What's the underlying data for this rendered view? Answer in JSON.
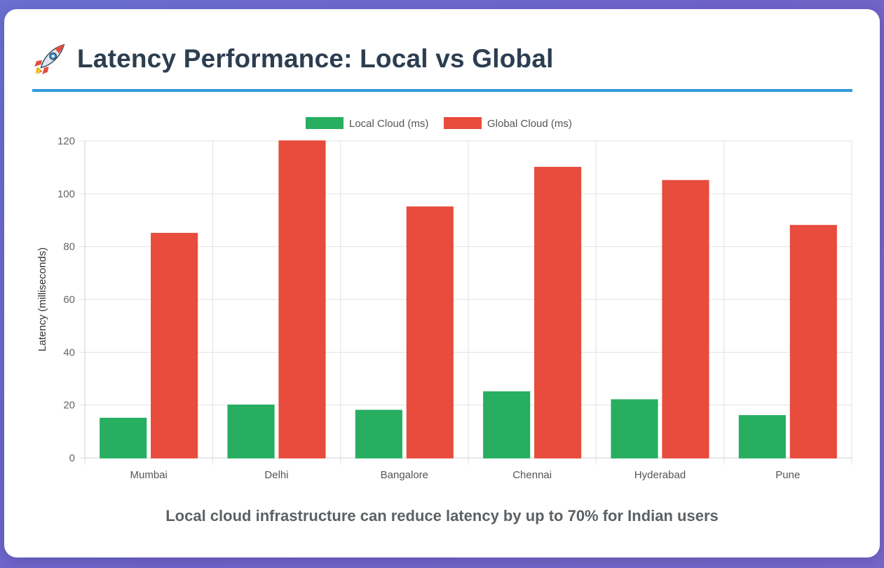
{
  "header": {
    "icon": "rocket-icon",
    "title": "Latency Performance: Local vs Global"
  },
  "footnote": "Local cloud infrastructure can reduce latency by up to 70% for Indian users",
  "colors": {
    "accent": "#3498db",
    "local": "#27ae60",
    "global": "#e74c3c",
    "title": "#2c3e50"
  },
  "chart_data": {
    "type": "bar",
    "categories": [
      "Mumbai",
      "Delhi",
      "Bangalore",
      "Chennai",
      "Hyderabad",
      "Pune"
    ],
    "series": [
      {
        "name": "Local Cloud (ms)",
        "color": "#27ae60",
        "values": [
          15,
          20,
          18,
          25,
          22,
          16
        ]
      },
      {
        "name": "Global Cloud (ms)",
        "color": "#e74c3c",
        "values": [
          85,
          120,
          95,
          110,
          105,
          88
        ]
      }
    ],
    "title": "",
    "xlabel": "",
    "ylabel": "Latency (milliseconds)",
    "ylim": [
      0,
      120
    ],
    "yticks": [
      0,
      20,
      40,
      60,
      80,
      100,
      120
    ],
    "grid": true,
    "legend": "top-center"
  }
}
